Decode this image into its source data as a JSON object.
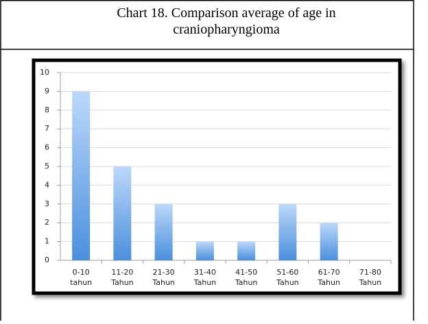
{
  "header": {
    "title": [
      "Chart 18. Comparison average of age in",
      "craniopharyngioma"
    ]
  },
  "chart_data": {
    "type": "bar",
    "categories": [
      [
        "0-10",
        "tahun"
      ],
      [
        "11-20",
        "Tahun"
      ],
      [
        "21-30",
        "Tahun"
      ],
      [
        "31-40",
        "Tahun"
      ],
      [
        "41-50",
        "Tahun"
      ],
      [
        "51-60",
        "Tahun"
      ],
      [
        "61-70",
        "Tahun"
      ],
      [
        "71-80",
        "Tahun"
      ]
    ],
    "values": [
      9,
      5,
      3,
      1,
      1,
      3,
      2,
      0
    ],
    "color": "#4a8fdc",
    "ylim": [
      0,
      10
    ],
    "yticks": [
      0,
      1,
      2,
      3,
      4,
      5,
      6,
      7,
      8,
      9,
      10
    ],
    "grid": true
  }
}
